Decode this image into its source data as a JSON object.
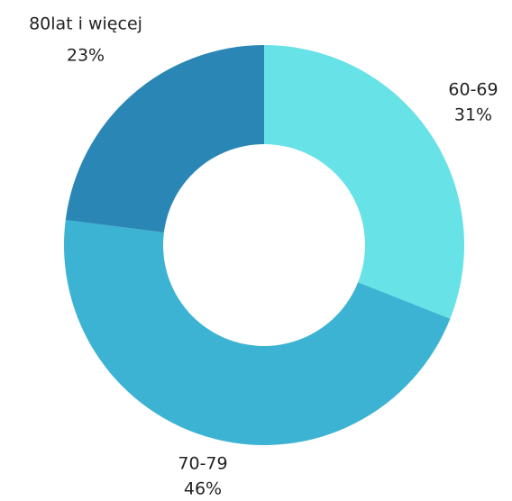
{
  "chart_data": {
    "type": "donut",
    "categories": [
      "60-69",
      "70-79",
      "80lat i więcej"
    ],
    "values": [
      31,
      46,
      23
    ],
    "value_labels": [
      "31%",
      "46%",
      "23%"
    ],
    "colors": [
      "#67e2e6",
      "#3db3d3",
      "#2a87b5"
    ]
  }
}
